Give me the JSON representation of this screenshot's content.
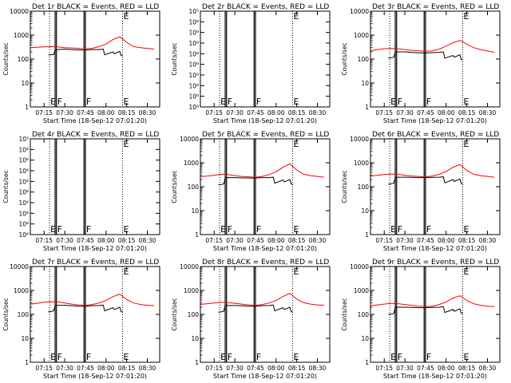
{
  "figure": {
    "xlabel": "Start Time (18-Sep-12 07:01:20)",
    "ylabel": "Counts/sec",
    "colors": {
      "events": "#000000",
      "lld": "#ff0000",
      "background": "#ffffff"
    }
  },
  "chart_data": [
    {
      "type": "line",
      "title": "Det 1r BLACK = Events, RED = LLD",
      "xticks": [
        "07:15",
        "07:30",
        "07:45",
        "08:00",
        "08:15",
        "08:30"
      ],
      "ylim": [
        1,
        10000
      ],
      "yscale": "log",
      "yticklabels": [
        "1",
        "10",
        "100",
        "1000",
        "10000"
      ],
      "vlines_solid": [
        "07:23",
        "07:24",
        "07:44",
        "07:45"
      ],
      "vlines_dotted": [
        "07:19",
        "08:12"
      ],
      "flags": [
        "E",
        "F",
        "F",
        "E"
      ],
      "series": [
        {
          "name": "LLD",
          "color": "#ff0000",
          "x": [
            "07:05",
            "07:10",
            "07:15",
            "07:20",
            "07:25",
            "07:30",
            "07:35",
            "07:40",
            "07:45",
            "07:50",
            "07:55",
            "08:00",
            "08:05",
            "08:10",
            "08:15",
            "08:20",
            "08:25",
            "08:30",
            "08:35"
          ],
          "values": [
            300,
            310,
            320,
            330,
            320,
            300,
            290,
            280,
            270,
            280,
            330,
            420,
            650,
            850,
            500,
            330,
            300,
            280,
            260
          ]
        },
        {
          "name": "Events",
          "color": "#000000",
          "x": [
            "07:18",
            "07:19",
            "07:22",
            "07:23",
            "07:25",
            "07:30",
            "07:35",
            "07:40",
            "07:45",
            "07:50",
            "07:55",
            "07:58",
            "07:59",
            "08:05",
            "08:06",
            "08:10",
            "08:11",
            "08:12"
          ],
          "values": [
            150,
            150,
            155,
            240,
            250,
            260,
            250,
            240,
            240,
            250,
            250,
            260,
            150,
            200,
            165,
            210,
            140,
            140
          ]
        }
      ]
    },
    {
      "type": "line",
      "title": "Det 2r BLACK = Events, RED = LLD",
      "xticks": [
        "07:15",
        "07:30",
        "07:45",
        "08:00",
        "08:15",
        "08:30"
      ],
      "ylim": [
        1e-06,
        1e-05
      ],
      "yscale": "log",
      "yticklabels": [
        "10⁶",
        "10⁶",
        "10⁶",
        "10⁶",
        "10⁶",
        "10⁶",
        "10⁶",
        "10⁶",
        "10⁶",
        "10⁵"
      ],
      "vlines_solid": [
        "07:23",
        "07:24",
        "07:44",
        "07:45"
      ],
      "vlines_dotted": [
        "07:19",
        "08:12"
      ],
      "flags": [
        "E",
        "F",
        "F",
        "E"
      ],
      "series": []
    },
    {
      "type": "line",
      "title": "Det 3r BLACK = Events, RED = LLD",
      "xticks": [
        "07:15",
        "07:30",
        "07:45",
        "08:00",
        "08:15",
        "08:30"
      ],
      "ylim": [
        1,
        10000
      ],
      "yscale": "log",
      "yticklabels": [
        "1",
        "10",
        "100",
        "1000",
        "10000"
      ],
      "vlines_solid": [
        "07:23",
        "07:24",
        "07:44",
        "07:45"
      ],
      "vlines_dotted": [
        "07:19",
        "08:12"
      ],
      "flags": [
        "E",
        "F",
        "F",
        "E"
      ],
      "series": [
        {
          "name": "LLD",
          "color": "#ff0000",
          "x": [
            "07:05",
            "07:10",
            "07:15",
            "07:20",
            "07:25",
            "07:30",
            "07:35",
            "07:40",
            "07:45",
            "07:50",
            "07:55",
            "08:00",
            "08:05",
            "08:10",
            "08:15",
            "08:20",
            "08:25",
            "08:30",
            "08:35"
          ],
          "values": [
            220,
            250,
            270,
            280,
            270,
            250,
            230,
            220,
            210,
            220,
            260,
            350,
            480,
            600,
            420,
            300,
            250,
            220,
            190
          ]
        },
        {
          "name": "Events",
          "color": "#000000",
          "x": [
            "07:18",
            "07:19",
            "07:22",
            "07:23",
            "07:25",
            "07:30",
            "07:35",
            "07:40",
            "07:45",
            "07:50",
            "07:55",
            "07:58",
            "07:59",
            "08:05",
            "08:06",
            "08:10",
            "08:11",
            "08:12"
          ],
          "values": [
            110,
            110,
            120,
            190,
            200,
            200,
            190,
            180,
            180,
            185,
            190,
            200,
            110,
            140,
            120,
            150,
            95,
            95
          ]
        }
      ]
    },
    {
      "type": "line",
      "title": "Det 4r BLACK = Events, RED = LLD",
      "xticks": [
        "07:15",
        "07:30",
        "07:45",
        "08:00",
        "08:15",
        "08:30"
      ],
      "ylim": [
        1e-06,
        1e-05
      ],
      "yscale": "log",
      "yticklabels": [
        "10⁶",
        "10⁶",
        "10⁶",
        "10⁶",
        "10⁶",
        "10⁶",
        "10⁶",
        "10⁶",
        "10⁶",
        "10⁵"
      ],
      "vlines_solid": [
        "07:23",
        "07:24",
        "07:44",
        "07:45"
      ],
      "vlines_dotted": [
        "07:19",
        "08:12"
      ],
      "flags": [
        "E",
        "F",
        "F",
        "E"
      ],
      "series": []
    },
    {
      "type": "line",
      "title": "Det 5r BLACK = Events, RED = LLD",
      "xticks": [
        "07:15",
        "07:30",
        "07:45",
        "08:00",
        "08:15",
        "08:30"
      ],
      "ylim": [
        1,
        10000
      ],
      "yscale": "log",
      "yticklabels": [
        "1",
        "10",
        "100",
        "1000",
        "10000"
      ],
      "vlines_solid": [
        "07:23",
        "07:24",
        "07:44",
        "07:45"
      ],
      "vlines_dotted": [
        "07:19",
        "08:12"
      ],
      "flags": [
        "E",
        "F",
        "F",
        "E"
      ],
      "series": [
        {
          "name": "LLD",
          "color": "#ff0000",
          "x": [
            "07:05",
            "07:10",
            "07:15",
            "07:20",
            "07:25",
            "07:30",
            "07:35",
            "07:40",
            "07:45",
            "07:50",
            "07:55",
            "08:00",
            "08:05",
            "08:10",
            "08:15",
            "08:20",
            "08:25",
            "08:30",
            "08:35"
          ],
          "values": [
            260,
            280,
            300,
            330,
            320,
            290,
            270,
            260,
            250,
            270,
            320,
            420,
            650,
            900,
            500,
            330,
            290,
            270,
            250
          ]
        },
        {
          "name": "Events",
          "color": "#000000",
          "x": [
            "07:18",
            "07:19",
            "07:22",
            "07:23",
            "07:25",
            "07:30",
            "07:35",
            "07:40",
            "07:45",
            "07:50",
            "07:55",
            "07:58",
            "07:59",
            "08:05",
            "08:06",
            "08:10",
            "08:11",
            "08:12"
          ],
          "values": [
            120,
            120,
            130,
            230,
            240,
            240,
            235,
            230,
            230,
            240,
            240,
            250,
            140,
            190,
            160,
            200,
            130,
            130
          ]
        }
      ]
    },
    {
      "type": "line",
      "title": "Det 6r BLACK = Events, RED = LLD",
      "xticks": [
        "07:15",
        "07:30",
        "07:45",
        "08:00",
        "08:15",
        "08:30"
      ],
      "ylim": [
        1,
        10000
      ],
      "yscale": "log",
      "yticklabels": [
        "1",
        "10",
        "100",
        "1000",
        "10000"
      ],
      "vlines_solid": [
        "07:23",
        "07:24",
        "07:44",
        "07:45"
      ],
      "vlines_dotted": [
        "07:19",
        "08:12"
      ],
      "flags": [
        "E",
        "F",
        "F",
        "E"
      ],
      "series": [
        {
          "name": "LLD",
          "color": "#ff0000",
          "x": [
            "07:05",
            "07:10",
            "07:15",
            "07:20",
            "07:25",
            "07:30",
            "07:35",
            "07:40",
            "07:45",
            "07:50",
            "07:55",
            "08:00",
            "08:05",
            "08:10",
            "08:15",
            "08:20",
            "08:25",
            "08:30",
            "08:35"
          ],
          "values": [
            280,
            300,
            320,
            340,
            330,
            300,
            280,
            270,
            260,
            280,
            330,
            430,
            650,
            850,
            480,
            330,
            290,
            270,
            250
          ]
        },
        {
          "name": "Events",
          "color": "#000000",
          "x": [
            "07:18",
            "07:19",
            "07:22",
            "07:23",
            "07:25",
            "07:30",
            "07:35",
            "07:40",
            "07:45",
            "07:50",
            "07:55",
            "07:58",
            "07:59",
            "08:05",
            "08:06",
            "08:10",
            "08:11",
            "08:12"
          ],
          "values": [
            130,
            130,
            140,
            240,
            250,
            250,
            245,
            240,
            240,
            245,
            250,
            260,
            145,
            200,
            165,
            210,
            135,
            135
          ]
        }
      ]
    },
    {
      "type": "line",
      "title": "Det 7r BLACK = Events, RED = LLD",
      "xticks": [
        "07:15",
        "07:30",
        "07:45",
        "08:00",
        "08:15",
        "08:30"
      ],
      "ylim": [
        1,
        10000
      ],
      "yscale": "log",
      "yticklabels": [
        "1",
        "10",
        "100",
        "1000",
        "10000"
      ],
      "vlines_solid": [
        "07:23",
        "07:24",
        "07:44",
        "07:45"
      ],
      "vlines_dotted": [
        "07:19",
        "08:12"
      ],
      "flags": [
        "E",
        "F",
        "F",
        "E"
      ],
      "series": [
        {
          "name": "LLD",
          "color": "#ff0000",
          "x": [
            "07:05",
            "07:10",
            "07:15",
            "07:20",
            "07:25",
            "07:30",
            "07:35",
            "07:40",
            "07:45",
            "07:50",
            "07:55",
            "08:00",
            "08:05",
            "08:10",
            "08:15",
            "08:20",
            "08:25",
            "08:30",
            "08:35"
          ],
          "values": [
            270,
            290,
            320,
            340,
            330,
            300,
            270,
            250,
            240,
            260,
            300,
            380,
            550,
            700,
            420,
            300,
            260,
            240,
            230
          ]
        },
        {
          "name": "Events",
          "color": "#000000",
          "x": [
            "07:18",
            "07:19",
            "07:22",
            "07:23",
            "07:25",
            "07:30",
            "07:35",
            "07:40",
            "07:45",
            "07:50",
            "07:55",
            "07:58",
            "07:59",
            "08:05",
            "08:06",
            "08:10",
            "08:11",
            "08:12"
          ],
          "values": [
            130,
            130,
            140,
            230,
            240,
            240,
            230,
            220,
            220,
            230,
            235,
            245,
            140,
            190,
            160,
            200,
            130,
            130
          ]
        }
      ]
    },
    {
      "type": "line",
      "title": "Det 8r BLACK = Events, RED = LLD",
      "xticks": [
        "07:15",
        "07:30",
        "07:45",
        "08:00",
        "08:15",
        "08:30"
      ],
      "ylim": [
        1,
        10000
      ],
      "yscale": "log",
      "yticklabels": [
        "1",
        "10",
        "100",
        "1000",
        "10000"
      ],
      "vlines_solid": [
        "07:23",
        "07:24",
        "07:44",
        "07:45"
      ],
      "vlines_dotted": [
        "07:19",
        "08:12"
      ],
      "flags": [
        "E",
        "F",
        "F",
        "E"
      ],
      "series": [
        {
          "name": "LLD",
          "color": "#ff0000",
          "x": [
            "07:05",
            "07:10",
            "07:15",
            "07:20",
            "07:25",
            "07:30",
            "07:35",
            "07:40",
            "07:45",
            "07:50",
            "07:55",
            "08:00",
            "08:05",
            "08:10",
            "08:15",
            "08:20",
            "08:25",
            "08:30",
            "08:35"
          ],
          "values": [
            260,
            280,
            300,
            320,
            310,
            290,
            270,
            250,
            240,
            260,
            300,
            380,
            560,
            750,
            440,
            310,
            270,
            250,
            240
          ]
        },
        {
          "name": "Events",
          "color": "#000000",
          "x": [
            "07:18",
            "07:19",
            "07:22",
            "07:23",
            "07:25",
            "07:30",
            "07:35",
            "07:40",
            "07:45",
            "07:50",
            "07:55",
            "07:58",
            "07:59",
            "08:05",
            "08:06",
            "08:10",
            "08:11",
            "08:12"
          ],
          "values": [
            125,
            125,
            135,
            230,
            235,
            235,
            230,
            220,
            220,
            230,
            235,
            245,
            140,
            190,
            160,
            200,
            130,
            130
          ]
        }
      ]
    },
    {
      "type": "line",
      "title": "Det 9r BLACK = Events, RED = LLD",
      "xticks": [
        "07:15",
        "07:30",
        "07:45",
        "08:00",
        "08:15",
        "08:30"
      ],
      "ylim": [
        1,
        10000
      ],
      "yscale": "log",
      "yticklabels": [
        "1",
        "10",
        "100",
        "1000",
        "10000"
      ],
      "vlines_solid": [
        "07:23",
        "07:24",
        "07:44",
        "07:45"
      ],
      "vlines_dotted": [
        "07:19",
        "08:12"
      ],
      "flags": [
        "E",
        "F",
        "F",
        "E"
      ],
      "series": [
        {
          "name": "LLD",
          "color": "#ff0000",
          "x": [
            "07:05",
            "07:10",
            "07:15",
            "07:20",
            "07:25",
            "07:30",
            "07:35",
            "07:40",
            "07:45",
            "07:50",
            "07:55",
            "08:00",
            "08:05",
            "08:10",
            "08:15",
            "08:20",
            "08:25",
            "08:30",
            "08:35"
          ],
          "values": [
            230,
            250,
            270,
            290,
            280,
            260,
            240,
            220,
            210,
            220,
            260,
            330,
            480,
            600,
            380,
            280,
            240,
            220,
            210
          ]
        },
        {
          "name": "Events",
          "color": "#000000",
          "x": [
            "07:18",
            "07:19",
            "07:22",
            "07:23",
            "07:25",
            "07:30",
            "07:35",
            "07:40",
            "07:45",
            "07:50",
            "07:55",
            "07:58",
            "07:59",
            "08:05",
            "08:06",
            "08:10",
            "08:11",
            "08:12"
          ],
          "values": [
            100,
            100,
            110,
            190,
            200,
            200,
            195,
            190,
            190,
            195,
            200,
            210,
            120,
            160,
            135,
            170,
            110,
            110
          ]
        }
      ]
    }
  ]
}
